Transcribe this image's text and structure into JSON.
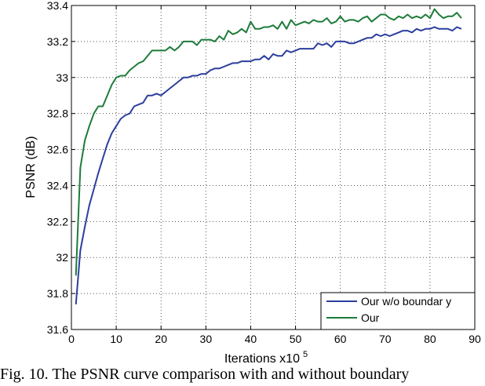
{
  "chart_data": {
    "type": "line",
    "xlabel": "Iterations x10",
    "xlabel_exponent": "5",
    "ylabel": "PSNR (dB)",
    "xlim": [
      0,
      90
    ],
    "ylim": [
      31.6,
      33.4
    ],
    "x_ticks": [
      0,
      10,
      20,
      30,
      40,
      50,
      60,
      70,
      80,
      90
    ],
    "y_ticks": [
      31.6,
      31.8,
      32,
      32.2,
      32.4,
      32.6,
      32.8,
      33,
      33.2,
      33.4
    ],
    "y_tick_labels": [
      "31.6",
      "31.8",
      "32",
      "32.2",
      "32.4",
      "32.6",
      "32.8",
      "33",
      "33.2",
      "33.4"
    ],
    "grid": "dotted",
    "legend_position": "bottom-right",
    "series": [
      {
        "name": "Our w/o boundar y",
        "color": "#2c3e9e",
        "x": [
          1,
          2,
          3,
          4,
          5,
          6,
          7,
          8,
          9,
          10,
          11,
          12,
          13,
          14,
          15,
          16,
          17,
          18,
          19,
          20,
          21,
          22,
          23,
          24,
          25,
          26,
          27,
          28,
          29,
          30,
          31,
          32,
          33,
          34,
          35,
          36,
          37,
          38,
          39,
          40,
          41,
          42,
          43,
          44,
          45,
          46,
          47,
          48,
          49,
          50,
          51,
          52,
          53,
          54,
          55,
          56,
          57,
          58,
          59,
          60,
          61,
          62,
          63,
          64,
          65,
          66,
          67,
          68,
          69,
          70,
          71,
          72,
          73,
          74,
          75,
          76,
          77,
          78,
          79,
          80,
          81,
          82,
          83,
          84,
          85,
          86,
          87
        ],
        "y": [
          31.74,
          32.04,
          32.17,
          32.29,
          32.38,
          32.47,
          32.55,
          32.63,
          32.69,
          32.73,
          32.77,
          32.79,
          32.8,
          32.84,
          32.85,
          32.86,
          32.9,
          32.9,
          32.91,
          32.9,
          32.92,
          32.94,
          32.96,
          32.98,
          33.0,
          33.0,
          33.01,
          33.01,
          33.02,
          33.02,
          33.04,
          33.05,
          33.05,
          33.06,
          33.07,
          33.08,
          33.08,
          33.09,
          33.09,
          33.09,
          33.1,
          33.1,
          33.12,
          33.1,
          33.13,
          33.12,
          33.12,
          33.15,
          33.14,
          33.15,
          33.16,
          33.16,
          33.16,
          33.16,
          33.19,
          33.18,
          33.19,
          33.17,
          33.2,
          33.2,
          33.2,
          33.19,
          33.19,
          33.2,
          33.21,
          33.22,
          33.22,
          33.24,
          33.23,
          33.24,
          33.23,
          33.24,
          33.25,
          33.26,
          33.26,
          33.25,
          33.27,
          33.26,
          33.27,
          33.27,
          33.28,
          33.27,
          33.27,
          33.27,
          33.26,
          33.28,
          33.27
        ]
      },
      {
        "name": "Our",
        "color": "#1e7b3a",
        "x": [
          1,
          2,
          3,
          4,
          5,
          6,
          7,
          8,
          9,
          10,
          11,
          12,
          13,
          14,
          15,
          16,
          17,
          18,
          19,
          20,
          21,
          22,
          23,
          24,
          25,
          26,
          27,
          28,
          29,
          30,
          31,
          32,
          33,
          34,
          35,
          36,
          37,
          38,
          39,
          40,
          41,
          42,
          43,
          44,
          45,
          46,
          47,
          48,
          49,
          50,
          51,
          52,
          53,
          54,
          55,
          56,
          57,
          58,
          59,
          60,
          61,
          62,
          63,
          64,
          65,
          66,
          67,
          68,
          69,
          70,
          71,
          72,
          73,
          74,
          75,
          76,
          77,
          78,
          79,
          80,
          81,
          82,
          83,
          84,
          85,
          86,
          87
        ],
        "y": [
          31.9,
          32.5,
          32.65,
          32.73,
          32.8,
          32.84,
          32.84,
          32.9,
          32.96,
          33.0,
          33.01,
          33.01,
          33.04,
          33.06,
          33.08,
          33.09,
          33.12,
          33.15,
          33.15,
          33.15,
          33.15,
          33.17,
          33.15,
          33.17,
          33.2,
          33.2,
          33.2,
          33.18,
          33.21,
          33.21,
          33.21,
          33.2,
          33.23,
          33.21,
          33.26,
          33.24,
          33.25,
          33.27,
          33.25,
          33.31,
          33.27,
          33.27,
          33.28,
          33.28,
          33.29,
          33.27,
          33.31,
          33.27,
          33.32,
          33.29,
          33.3,
          33.31,
          33.3,
          33.32,
          33.31,
          33.31,
          33.33,
          33.3,
          33.31,
          33.34,
          33.31,
          33.32,
          33.32,
          33.31,
          33.33,
          33.34,
          33.31,
          33.33,
          33.35,
          33.35,
          33.33,
          33.32,
          33.34,
          33.33,
          33.35,
          33.33,
          33.34,
          33.33,
          33.35,
          33.33,
          33.38,
          33.35,
          33.33,
          33.34,
          33.34,
          33.36,
          33.33
        ]
      }
    ]
  },
  "caption": {
    "text": "Fig. 10. The PSNR curve comparison with and without boundary"
  }
}
